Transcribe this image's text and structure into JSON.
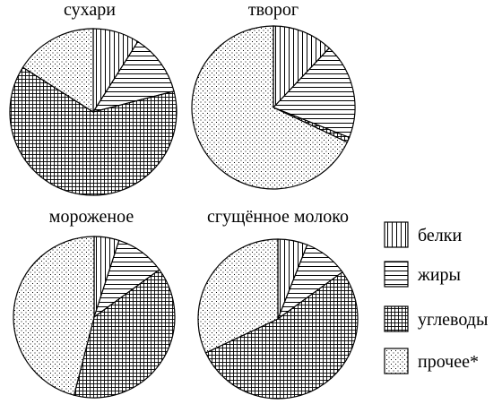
{
  "colors": {
    "stroke": "#000000",
    "background": "#ffffff"
  },
  "chart_data": [
    {
      "type": "pie",
      "title": "сухари",
      "categories": [
        "белки",
        "жиры",
        "углеводы",
        "прочее*"
      ],
      "values": [
        9,
        12,
        63,
        16
      ]
    },
    {
      "type": "pie",
      "title": "творог",
      "categories": [
        "белки",
        "жиры",
        "углеводы",
        "прочее*"
      ],
      "values": [
        12,
        19,
        1,
        68
      ]
    },
    {
      "type": "pie",
      "title": "мороженое",
      "categories": [
        "белки",
        "жиры",
        "углеводы",
        "прочее*"
      ],
      "values": [
        5,
        10,
        39,
        46
      ]
    },
    {
      "type": "pie",
      "title": "сгущённое молоко",
      "categories": [
        "белки",
        "жиры",
        "углеводы",
        "прочее*"
      ],
      "values": [
        6,
        9,
        53,
        32
      ]
    }
  ],
  "legend": {
    "placement": "right",
    "items": [
      {
        "label": "белки",
        "pattern": "vertical-lines"
      },
      {
        "label": "жиры",
        "pattern": "horizontal-lines"
      },
      {
        "label": "углеводы",
        "pattern": "grid"
      },
      {
        "label": "прочее*",
        "pattern": "dots"
      }
    ]
  }
}
